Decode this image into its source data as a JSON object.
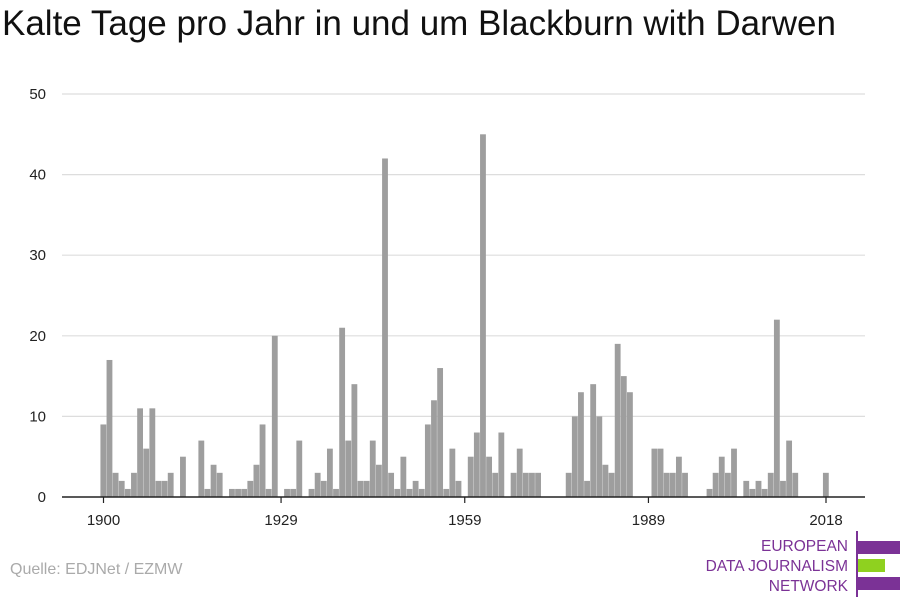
{
  "title": "Kalte Tage pro Jahr in und um Blackburn with Darwen",
  "source": "Quelle: EDJNet / EZMW",
  "logo": {
    "lines": [
      "EUROPEAN",
      "DATA JOURNALISM",
      "NETWORK"
    ],
    "colors": {
      "purple": "#7b3296",
      "green": "#8fd11f"
    }
  },
  "chart_data": {
    "type": "bar",
    "title": "Kalte Tage pro Jahr in und um Blackburn with Darwen",
    "xlabel": "",
    "ylabel": "",
    "ylim": [
      0,
      50
    ],
    "yticks": [
      0,
      10,
      20,
      30,
      40,
      50
    ],
    "xticks": [
      1900,
      1929,
      1959,
      1989,
      2018
    ],
    "xlim": [
      1900,
      2018
    ],
    "grid": true,
    "bar_color": "#9e9e9e",
    "x": [
      1900,
      1901,
      1902,
      1903,
      1904,
      1905,
      1906,
      1907,
      1908,
      1909,
      1910,
      1911,
      1912,
      1913,
      1914,
      1915,
      1916,
      1917,
      1918,
      1919,
      1920,
      1921,
      1922,
      1923,
      1924,
      1925,
      1926,
      1927,
      1928,
      1929,
      1930,
      1931,
      1932,
      1933,
      1934,
      1935,
      1936,
      1937,
      1938,
      1939,
      1940,
      1941,
      1942,
      1943,
      1944,
      1945,
      1946,
      1947,
      1948,
      1949,
      1950,
      1951,
      1952,
      1953,
      1954,
      1955,
      1956,
      1957,
      1958,
      1959,
      1960,
      1961,
      1962,
      1963,
      1964,
      1965,
      1966,
      1967,
      1968,
      1969,
      1970,
      1971,
      1972,
      1973,
      1974,
      1975,
      1976,
      1977,
      1978,
      1979,
      1980,
      1981,
      1982,
      1983,
      1984,
      1985,
      1986,
      1987,
      1988,
      1989,
      1990,
      1991,
      1992,
      1993,
      1994,
      1995,
      1996,
      1997,
      1998,
      1999,
      2000,
      2001,
      2002,
      2003,
      2004,
      2005,
      2006,
      2007,
      2008,
      2009,
      2010,
      2011,
      2012,
      2013,
      2014,
      2015,
      2016,
      2017,
      2018
    ],
    "values": [
      9,
      17,
      3,
      2,
      1,
      3,
      11,
      6,
      11,
      2,
      2,
      3,
      0,
      5,
      0,
      0,
      7,
      1,
      4,
      3,
      0,
      1,
      1,
      1,
      2,
      4,
      9,
      1,
      20,
      0,
      1,
      1,
      7,
      0,
      1,
      3,
      2,
      6,
      1,
      21,
      7,
      14,
      2,
      2,
      7,
      4,
      42,
      3,
      1,
      5,
      1,
      2,
      1,
      9,
      12,
      16,
      1,
      6,
      2,
      0,
      5,
      8,
      45,
      5,
      3,
      8,
      0,
      3,
      6,
      3,
      3,
      3,
      0,
      0,
      0,
      0,
      3,
      10,
      13,
      2,
      14,
      10,
      4,
      3,
      19,
      15,
      13,
      0,
      0,
      0,
      6,
      6,
      3,
      3,
      5,
      3,
      0,
      0,
      0,
      1,
      3,
      5,
      3,
      6,
      0,
      2,
      1,
      2,
      1,
      3,
      22,
      2,
      7,
      3,
      0,
      0,
      0,
      0,
      3
    ]
  }
}
